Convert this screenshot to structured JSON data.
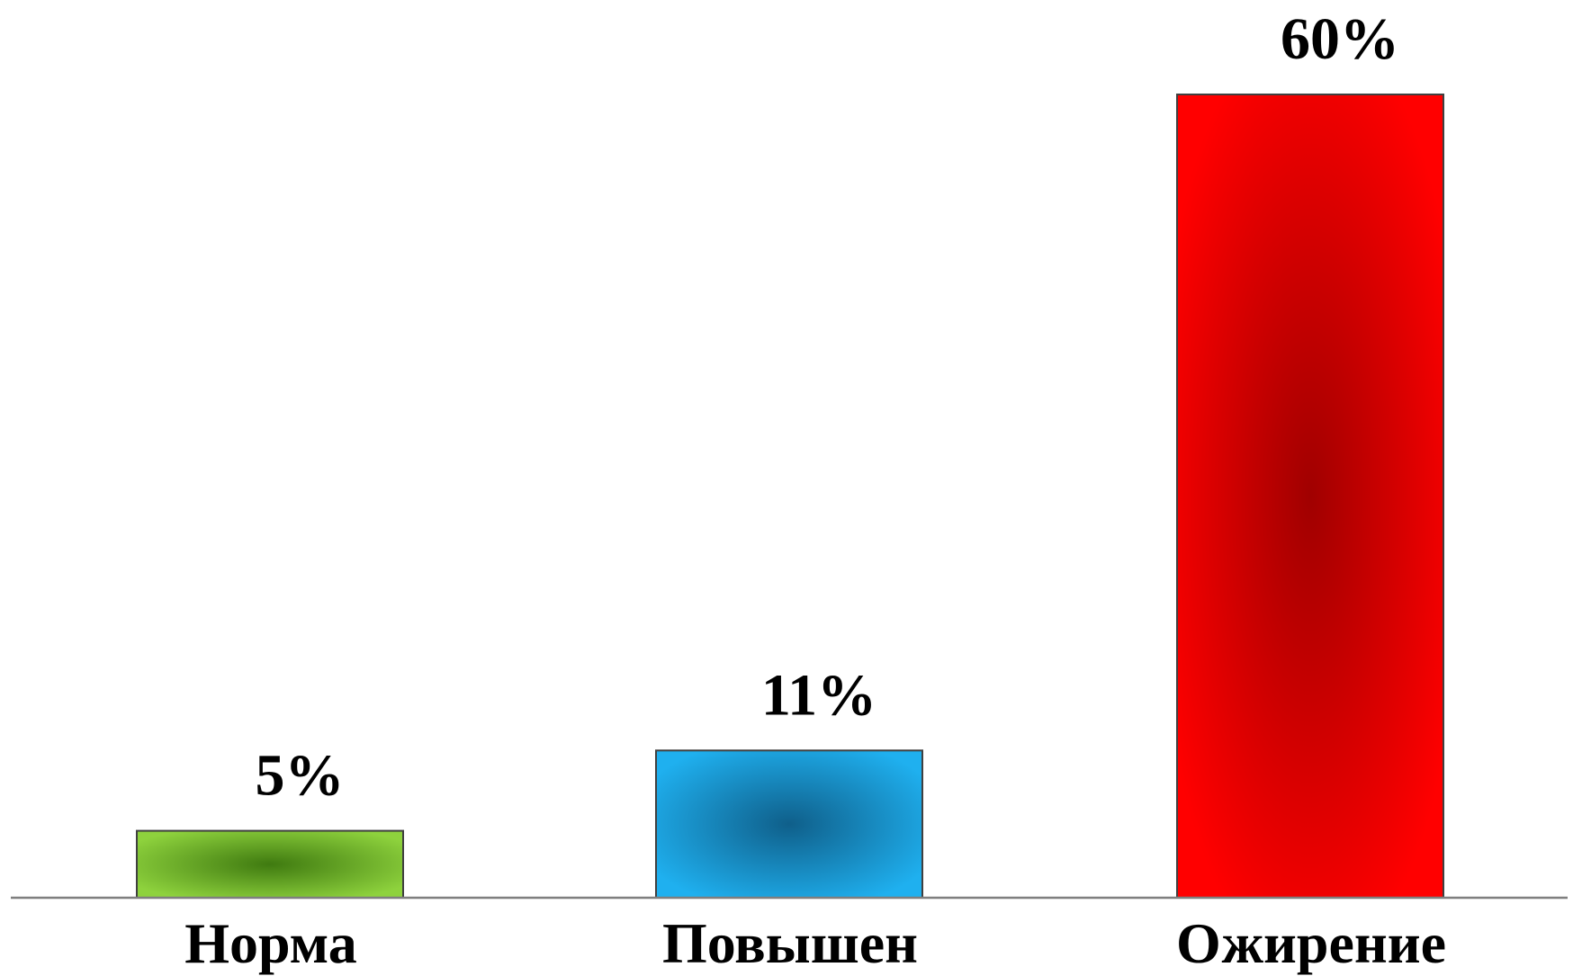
{
  "chart_data": {
    "type": "bar",
    "title": "",
    "xlabel": "",
    "ylabel": "",
    "categories": [
      "Норма",
      "Повышен",
      "Ожирение"
    ],
    "values": [
      5,
      11,
      60
    ],
    "value_labels": [
      "5%",
      "11%",
      "60%"
    ],
    "unit": "%",
    "ylim": [
      0,
      60
    ],
    "grid": false,
    "legend": "none",
    "colors": [
      "#8ed23d",
      "#1fb0ef",
      "#ff0000"
    ],
    "dark_colors": [
      "#3f7a10",
      "#0f5f8a",
      "#a00000"
    ]
  }
}
